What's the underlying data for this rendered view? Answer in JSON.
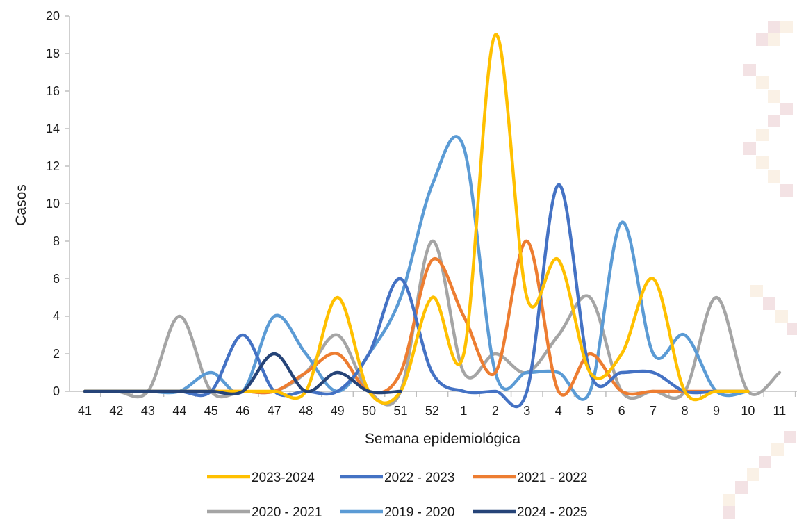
{
  "chart_data": {
    "type": "line",
    "xlabel": "Semana epidemiológica",
    "ylabel": "Casos",
    "categories": [
      "41",
      "42",
      "43",
      "44",
      "45",
      "46",
      "47",
      "48",
      "49",
      "50",
      "51",
      "52",
      "1",
      "2",
      "3",
      "4",
      "5",
      "6",
      "7",
      "8",
      "9",
      "10",
      "11"
    ],
    "ylim": [
      0,
      20
    ],
    "yticks": [
      0,
      2,
      4,
      6,
      8,
      10,
      12,
      14,
      16,
      18,
      20
    ],
    "grid": false,
    "legend_position": "bottom",
    "series": [
      {
        "name": "2023-2024",
        "color": "#FFC000",
        "values": [
          0,
          0,
          0,
          0,
          0,
          0,
          0,
          0,
          5,
          0,
          0,
          5,
          2,
          19,
          5,
          7,
          1,
          2,
          6,
          0,
          0,
          0,
          null
        ]
      },
      {
        "name": "2022 - 2023",
        "color": "#4472C4",
        "values": [
          0,
          0,
          0,
          0,
          0,
          3,
          0,
          0,
          0,
          2,
          6,
          1,
          0,
          0,
          0,
          11,
          1,
          1,
          1,
          0,
          0,
          0,
          null
        ]
      },
      {
        "name": "2021 - 2022",
        "color": "#ED7D31",
        "values": [
          0,
          0,
          0,
          0,
          0,
          0,
          0,
          1,
          2,
          0,
          1,
          7,
          4,
          1,
          8,
          0,
          2,
          0,
          0,
          0,
          0,
          0,
          null
        ]
      },
      {
        "name": "2020 - 2021",
        "color": "#A5A5A5",
        "values": [
          0,
          0,
          0,
          4,
          0,
          0,
          0,
          1,
          3,
          0,
          0,
          8,
          1,
          2,
          1,
          3,
          5,
          0,
          0,
          0,
          5,
          0,
          1
        ]
      },
      {
        "name": "2019 - 2020",
        "color": "#5B9BD5",
        "values": [
          0,
          0,
          0,
          0,
          1,
          0,
          4,
          2,
          0,
          2,
          5,
          11,
          13,
          1,
          1,
          1,
          0,
          9,
          2,
          3,
          0,
          0,
          null
        ]
      },
      {
        "name": "2024 - 2025",
        "color": "#264478",
        "values": [
          0,
          0,
          0,
          0,
          0,
          0,
          2,
          0,
          1,
          0,
          0,
          null,
          null,
          null,
          null,
          null,
          null,
          null,
          null,
          null,
          null,
          null,
          null
        ]
      }
    ]
  },
  "decor": {
    "icon": "patterned-border-decoration-icon"
  }
}
